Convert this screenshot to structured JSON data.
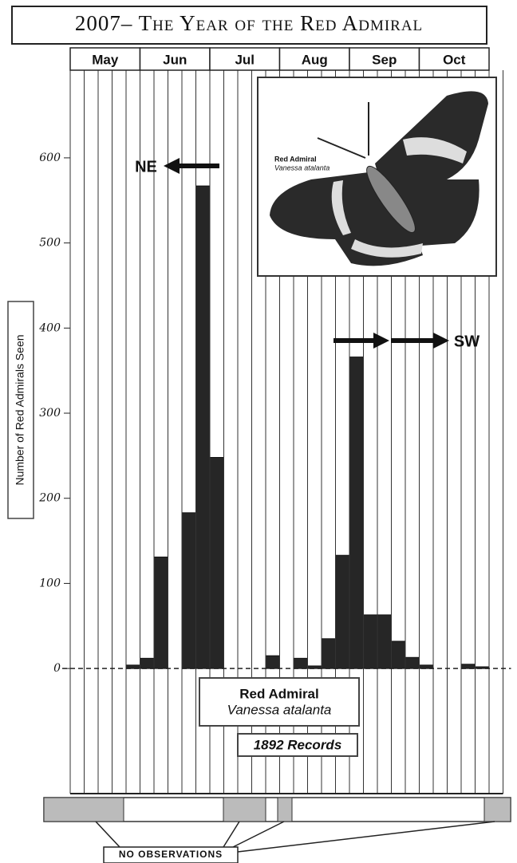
{
  "chart_data": {
    "type": "bar",
    "title": "2007– The Year of the Red Admiral",
    "y_label": "Number of Red Admirals Seen",
    "months": [
      "May",
      "Jun",
      "Jul",
      "Aug",
      "Sep",
      "Oct"
    ],
    "categories": [
      null,
      null,
      null,
      null,
      null,
      null,
      null,
      null,
      null,
      null,
      null,
      null,
      null,
      null,
      null,
      null,
      null,
      null,
      null,
      null,
      null,
      null,
      null,
      null,
      null,
      null,
      null,
      null,
      null,
      null,
      null
    ],
    "values": [
      0,
      0,
      0,
      0,
      4,
      12,
      131,
      0,
      183,
      567,
      248,
      0,
      0,
      0,
      15,
      0,
      12,
      3,
      35,
      133,
      366,
      63,
      63,
      32,
      13,
      4,
      0,
      0,
      5,
      2,
      0
    ],
    "color": "#262626",
    "ylim": [
      -147,
      703
    ],
    "yticks": [
      0,
      100,
      200,
      300,
      400,
      500,
      600
    ],
    "annotations": [
      "NE",
      "SW"
    ],
    "inset": {
      "name": "Red Admiral",
      "species": "Vanessa atalanta"
    },
    "legend": {
      "name": "Red Admiral",
      "species": "Vanessa atalanta",
      "records": "1892 Records"
    },
    "no_observations": "NO OBSERVATIONS"
  }
}
